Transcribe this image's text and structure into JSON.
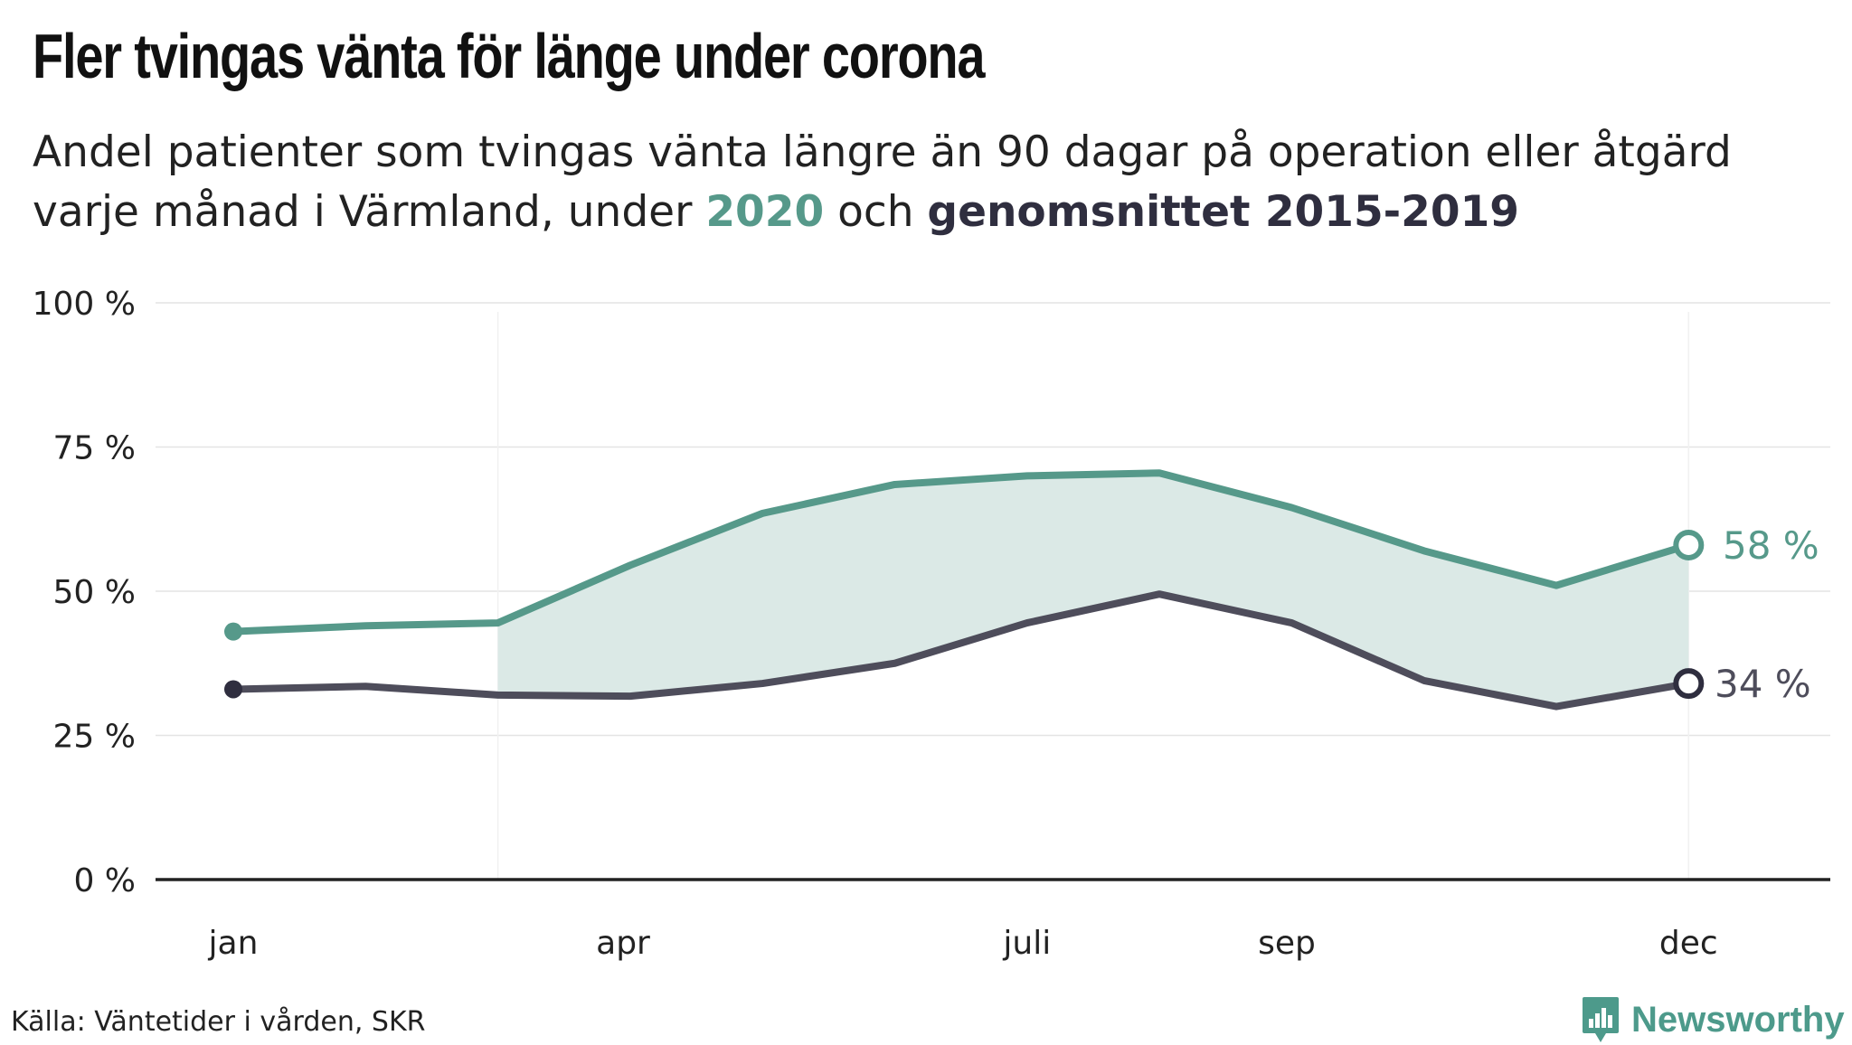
{
  "header": {
    "title": "Fler tvingas vänta för länge under corona",
    "subtitle_part1": "Andel patienter som tvingas vänta längre än 90 dagar på operation eller åtgärd varje månad i Värmland, under ",
    "subtitle_2020": "2020",
    "subtitle_part2": " och ",
    "subtitle_avg": "genomsnittet 2015-2019"
  },
  "footer": {
    "source": "Källa: Väntetider i vården, SKR",
    "brand": "Newsworthy"
  },
  "colors": {
    "series_2020": "#56998a",
    "series_avg": "#4e4d5b",
    "marker_avg": "#2f2e3f",
    "band_fill": "#dbe9e6",
    "grid": "#e4e4e4",
    "axis": "#222222"
  },
  "chart_data": {
    "type": "line",
    "x": [
      "jan",
      "feb",
      "mar",
      "apr",
      "maj",
      "jun",
      "juli",
      "aug",
      "sep",
      "okt",
      "nov",
      "dec"
    ],
    "x_tick_labels": [
      "jan",
      "apr",
      "juli",
      "sep",
      "dec"
    ],
    "y_tick_labels": [
      "0 %",
      "25 %",
      "50 %",
      "75 %",
      "100 %"
    ],
    "y_ticks": [
      0,
      25,
      50,
      75,
      100
    ],
    "ylim": [
      0,
      100
    ],
    "series": [
      {
        "name": "2020",
        "values": [
          43,
          44,
          44.5,
          54.5,
          63.5,
          68.5,
          70,
          70.5,
          64.5,
          57,
          51,
          58
        ],
        "end_label": "58 %"
      },
      {
        "name": "genomsnittet 2015-2019",
        "values": [
          33,
          33.5,
          32,
          31.8,
          34,
          37.5,
          44.5,
          49.5,
          44.5,
          34.5,
          30,
          34
        ],
        "end_label": "34 %"
      }
    ],
    "shaded_between_series_from": "mar",
    "grid": true
  }
}
